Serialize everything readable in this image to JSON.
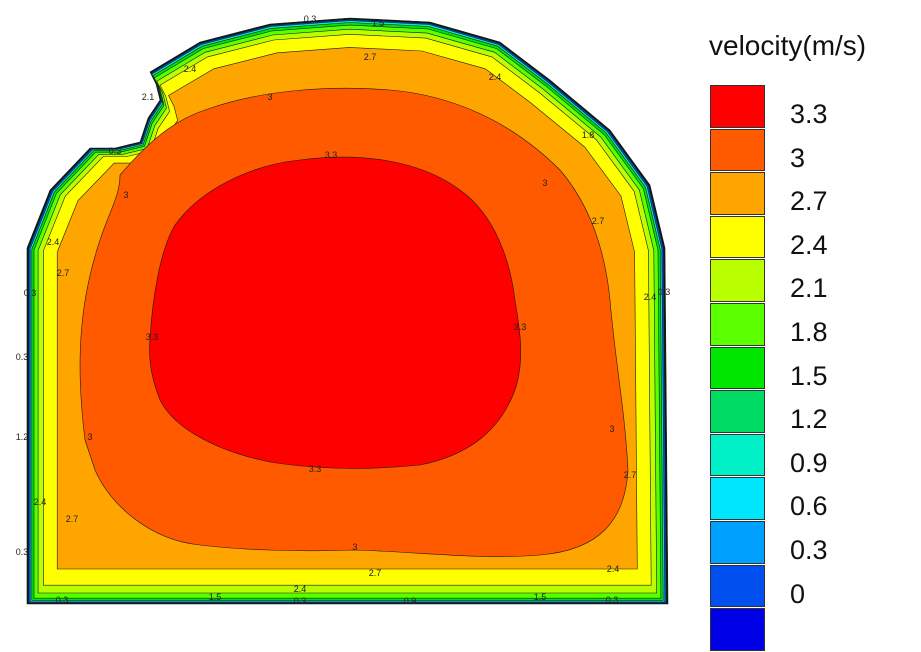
{
  "chart_data": {
    "type": "contour",
    "colorbar": {
      "title": "velocity(m/s)",
      "ticks": [
        "3.3",
        "3",
        "2.7",
        "2.4",
        "2.1",
        "1.8",
        "1.5",
        "1.2",
        "0.9",
        "0.6",
        "0.3",
        "0"
      ],
      "colors": [
        "#ff0000",
        "#ff5a00",
        "#ffa500",
        "#ffff00",
        "#b9ff00",
        "#5aff00",
        "#00e600",
        "#00dc64",
        "#00f0c8",
        "#00e6ff",
        "#00a0ff",
        "#0050f0",
        "#0000e6"
      ]
    },
    "contour_levels": [
      0.3,
      0.6,
      0.9,
      1.2,
      1.5,
      1.8,
      2.1,
      2.4,
      2.7,
      3,
      3.3
    ],
    "contour_labels": [
      "3.3",
      "3",
      "2.7",
      "2.4",
      "2.1",
      "1.8",
      "1.5",
      "1.2",
      "0.9",
      "0.6",
      "0.3"
    ],
    "value_range": [
      0,
      3.3
    ]
  }
}
